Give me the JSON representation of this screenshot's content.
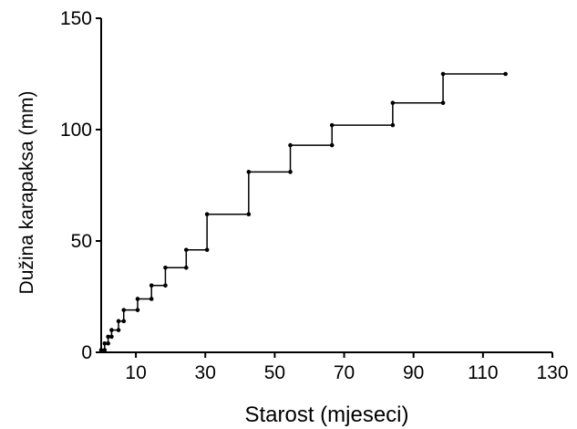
{
  "chart_data": {
    "type": "line",
    "step": true,
    "title": "",
    "xlabel": "Starost (mjeseci)",
    "ylabel": "Dužina karapaksa (mm)",
    "xlim": [
      0,
      130
    ],
    "ylim": [
      0,
      150
    ],
    "xticks": [
      10,
      30,
      50,
      70,
      90,
      110,
      130
    ],
    "xtick_labels": [
      "10",
      "30",
      "50",
      "70",
      "90",
      "110",
      "130"
    ],
    "yticks": [
      0,
      50,
      100,
      150
    ],
    "ytick_labels": [
      "0",
      "50",
      "100",
      "150"
    ],
    "grid": false,
    "legend": "none",
    "color": "#000000",
    "series": [
      {
        "points": [
          {
            "x": 0,
            "y": 1
          },
          {
            "x": 1,
            "y": 1
          },
          {
            "x": 1,
            "y": 4
          },
          {
            "x": 2,
            "y": 4
          },
          {
            "x": 2,
            "y": 7
          },
          {
            "x": 3,
            "y": 7
          },
          {
            "x": 3,
            "y": 10
          },
          {
            "x": 5,
            "y": 10
          },
          {
            "x": 5,
            "y": 14
          },
          {
            "x": 6.5,
            "y": 14
          },
          {
            "x": 6.5,
            "y": 19
          },
          {
            "x": 10.5,
            "y": 19
          },
          {
            "x": 10.5,
            "y": 24
          },
          {
            "x": 14.5,
            "y": 24
          },
          {
            "x": 14.5,
            "y": 30
          },
          {
            "x": 18.5,
            "y": 30
          },
          {
            "x": 18.5,
            "y": 38
          },
          {
            "x": 24.5,
            "y": 38
          },
          {
            "x": 24.5,
            "y": 46
          },
          {
            "x": 30.5,
            "y": 46
          },
          {
            "x": 30.5,
            "y": 62
          },
          {
            "x": 42.5,
            "y": 62
          },
          {
            "x": 42.5,
            "y": 81
          },
          {
            "x": 54.5,
            "y": 81
          },
          {
            "x": 54.5,
            "y": 93
          },
          {
            "x": 66.5,
            "y": 93
          },
          {
            "x": 66.5,
            "y": 102
          },
          {
            "x": 84,
            "y": 102
          },
          {
            "x": 84,
            "y": 112
          },
          {
            "x": 98.5,
            "y": 112
          },
          {
            "x": 98.5,
            "y": 125
          },
          {
            "x": 116.5,
            "y": 125
          }
        ]
      }
    ]
  }
}
